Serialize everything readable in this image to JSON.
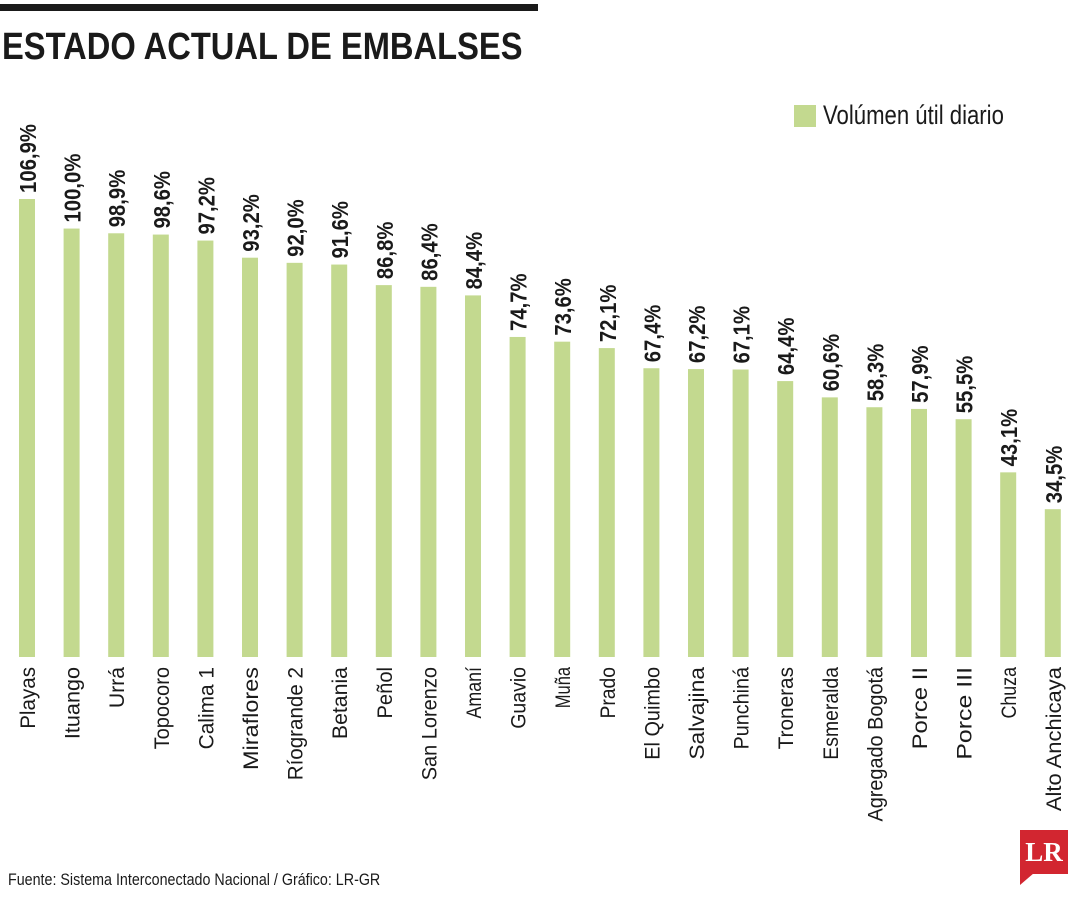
{
  "title": "ESTADO ACTUAL DE EMBALSES",
  "source": "Fuente: Sistema Interconectado Nacional / Gráfico: LR-GR",
  "logo": {
    "text": "LR",
    "color": "#d22630"
  },
  "colors": {
    "bar": "#c3d98f",
    "text": "#1a1a1a"
  },
  "chart_data": {
    "type": "bar",
    "title": "ESTADO ACTUAL DE EMBALSES",
    "xlabel": "",
    "ylabel": "",
    "legend": "top-right",
    "grid": false,
    "ylim": [
      0,
      106.9
    ],
    "categories": [
      "Playas",
      "Ituango",
      "Urrá",
      "Topocoro",
      "Calima 1",
      "Miraflores",
      "Ríogrande 2",
      "Betania",
      "Peñol",
      "San Lorenzo",
      "Amaní",
      "Guavio",
      "Muña",
      "Prado",
      "El Quimbo",
      "Salvajina",
      "Punchiná",
      "Troneras",
      "Esmeralda",
      "Agregado Bogotá",
      "Porce II",
      "Porce III",
      "Chuza",
      "Alto Anchicaya"
    ],
    "series": [
      {
        "name": "Volúmen útil diario",
        "values": [
          106.9,
          100.0,
          98.9,
          98.6,
          97.2,
          93.2,
          92.0,
          91.6,
          86.8,
          86.4,
          84.4,
          74.7,
          73.6,
          72.1,
          67.4,
          67.2,
          67.1,
          64.4,
          60.6,
          58.3,
          57.9,
          55.5,
          43.1,
          34.5
        ],
        "labels": [
          "106,9%",
          "100,0%",
          "98,9%",
          "98,6%",
          "97,2%",
          "93,2%",
          "92,0%",
          "91,6%",
          "86,8%",
          "86,4%",
          "84,4%",
          "74,7%",
          "73,6%",
          "72,1%",
          "67,4%",
          "67,2%",
          "67,1%",
          "64,4%",
          "60,6%",
          "58,3%",
          "57,9%",
          "55,5%",
          "43,1%",
          "34,5%"
        ]
      }
    ]
  }
}
